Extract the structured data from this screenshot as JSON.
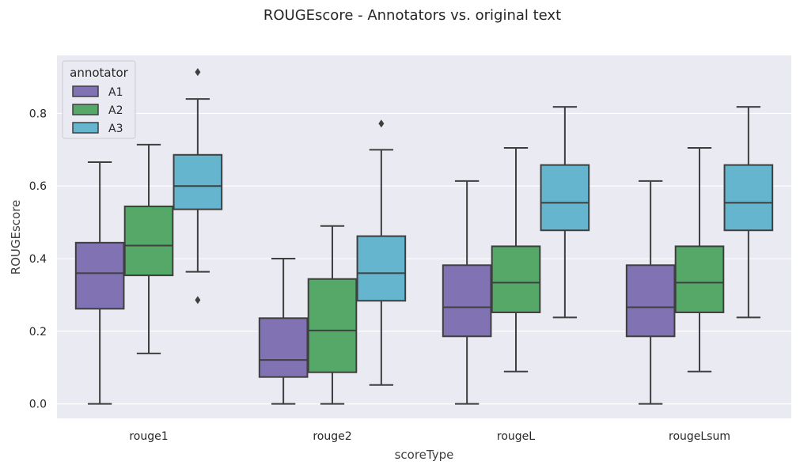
{
  "chart_data": {
    "type": "box",
    "title": "ROUGEscore - Annotators vs. original text",
    "xlabel": "scoreType",
    "ylabel": "ROUGEscore",
    "categories": [
      "rouge1",
      "rouge2",
      "rougeL",
      "rougeLsum"
    ],
    "ylim": [
      -0.04,
      0.96
    ],
    "yticks": [
      "0.0",
      "0.2",
      "0.4",
      "0.6",
      "0.8"
    ],
    "grid": true,
    "legend": {
      "title": "annotator",
      "placement": "top-left"
    },
    "series": [
      {
        "name": "A1",
        "color": "#8172b3",
        "boxes": [
          {
            "whisker_low": 0.0,
            "q1": 0.262,
            "median": 0.36,
            "q3": 0.444,
            "whisker_high": 0.666,
            "outliers": []
          },
          {
            "whisker_low": 0.0,
            "q1": 0.074,
            "median": 0.121,
            "q3": 0.236,
            "whisker_high": 0.4,
            "outliers": []
          },
          {
            "whisker_low": 0.0,
            "q1": 0.186,
            "median": 0.266,
            "q3": 0.382,
            "whisker_high": 0.614,
            "outliers": []
          },
          {
            "whisker_low": 0.0,
            "q1": 0.186,
            "median": 0.266,
            "q3": 0.382,
            "whisker_high": 0.614,
            "outliers": []
          }
        ]
      },
      {
        "name": "A2",
        "color": "#55a868",
        "boxes": [
          {
            "whisker_low": 0.139,
            "q1": 0.354,
            "median": 0.436,
            "q3": 0.544,
            "whisker_high": 0.714,
            "outliers": []
          },
          {
            "whisker_low": 0.0,
            "q1": 0.087,
            "median": 0.202,
            "q3": 0.344,
            "whisker_high": 0.49,
            "outliers": []
          },
          {
            "whisker_low": 0.089,
            "q1": 0.252,
            "median": 0.334,
            "q3": 0.434,
            "whisker_high": 0.705,
            "outliers": []
          },
          {
            "whisker_low": 0.089,
            "q1": 0.252,
            "median": 0.334,
            "q3": 0.434,
            "whisker_high": 0.705,
            "outliers": []
          }
        ]
      },
      {
        "name": "A3",
        "color": "#64b5cd",
        "boxes": [
          {
            "whisker_low": 0.364,
            "q1": 0.536,
            "median": 0.6,
            "q3": 0.686,
            "whisker_high": 0.84,
            "outliers": [
              0.286,
              0.914
            ]
          },
          {
            "whisker_low": 0.052,
            "q1": 0.284,
            "median": 0.36,
            "q3": 0.462,
            "whisker_high": 0.7,
            "outliers": [
              0.772
            ]
          },
          {
            "whisker_low": 0.238,
            "q1": 0.478,
            "median": 0.554,
            "q3": 0.658,
            "whisker_high": 0.818,
            "outliers": []
          },
          {
            "whisker_low": 0.238,
            "q1": 0.478,
            "median": 0.554,
            "q3": 0.658,
            "whisker_high": 0.818,
            "outliers": []
          }
        ]
      }
    ]
  }
}
